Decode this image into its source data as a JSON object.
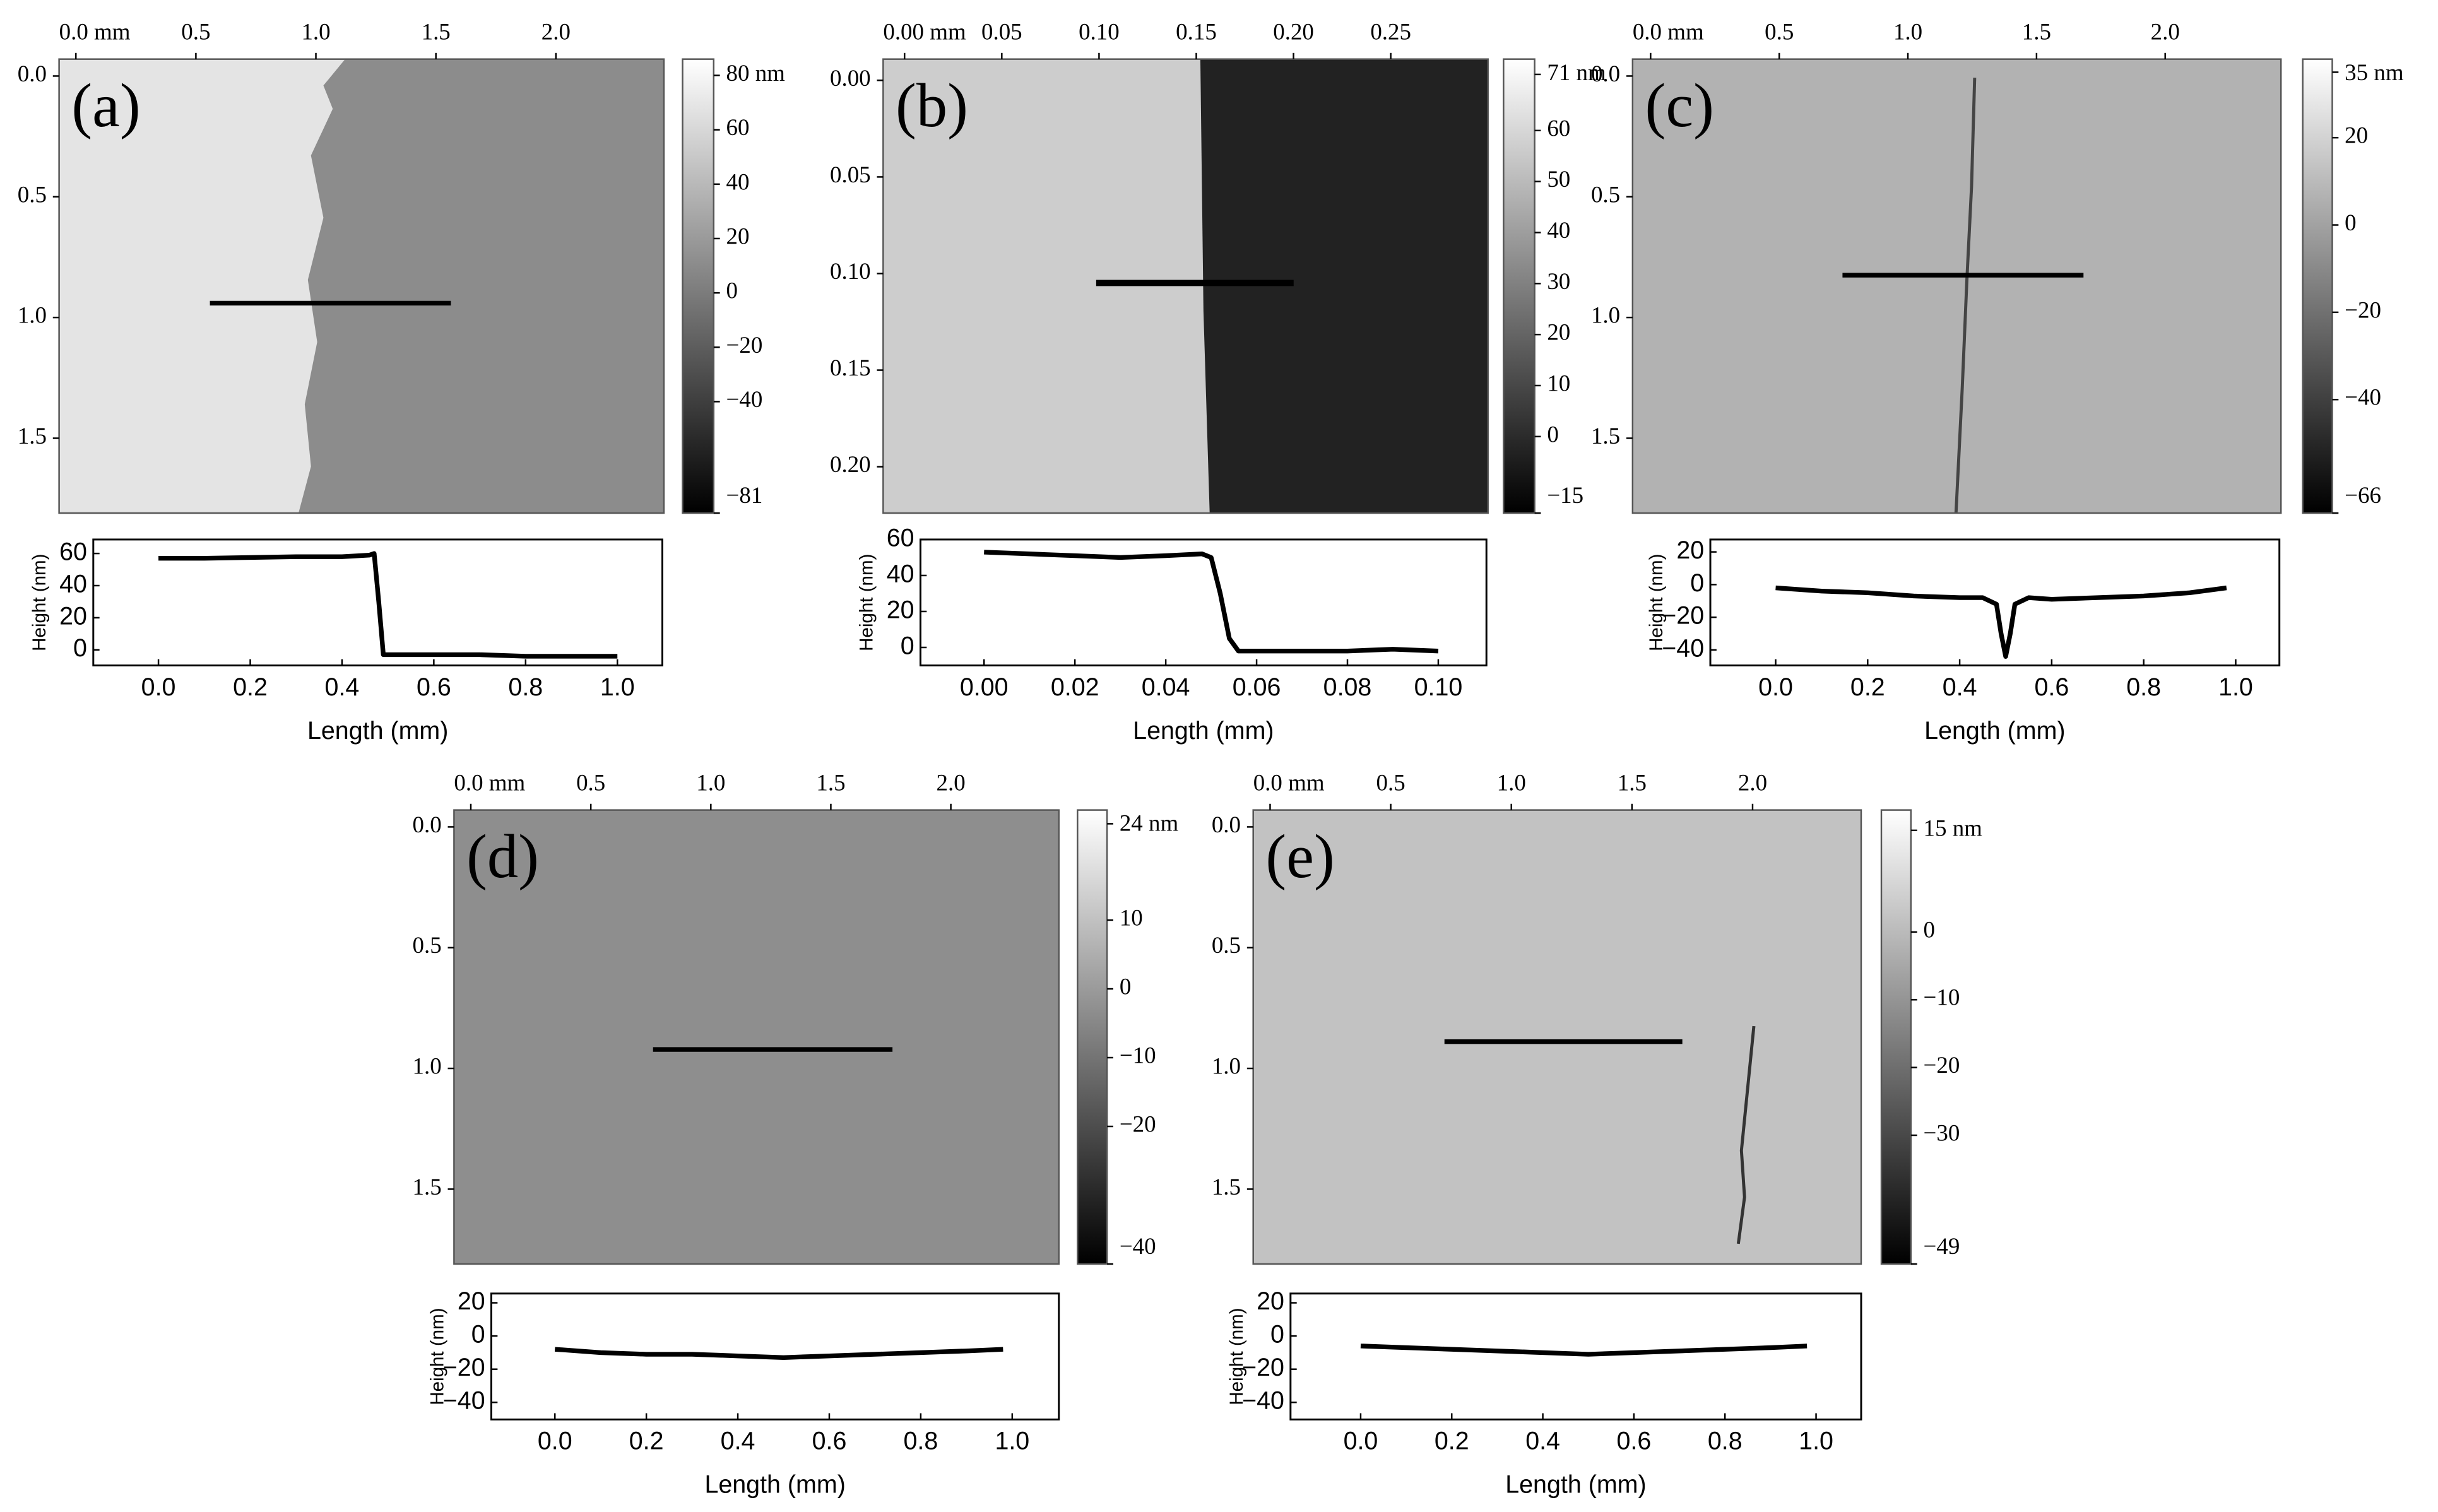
{
  "chart_data": [
    {
      "type": "image",
      "label": "(a)",
      "xlim": [
        -0.07,
        2.45
      ],
      "xticks": [
        {
          "value": 0,
          "label": "0.0 mm"
        },
        0.5,
        {
          "value": 1,
          "label": "1.0"
        },
        1.5,
        {
          "value": 2,
          "label": "2.0"
        }
      ],
      "ylim": [
        -0.07,
        1.81
      ],
      "yticks": [
        {
          "value": 0,
          "label": "0.0"
        },
        0.5,
        {
          "value": 1,
          "label": "1.0"
        },
        1.5
      ],
      "clim": [
        -81,
        86
      ],
      "cticks": [
        {
          "value": 80,
          "label": "80 nm"
        },
        60,
        40,
        20,
        0,
        {
          "value": -20,
          "label": "−20"
        },
        {
          "value": -40,
          "label": "−40"
        },
        {
          "value": -81,
          "label": "−81"
        }
      ]
    },
    {
      "type": "line",
      "x_label": "Length (mm)",
      "y_label": "Height (nm)",
      "color": "#000000",
      "x": [
        0,
        0.1,
        0.2,
        0.3,
        0.4,
        0.46,
        0.47,
        0.48,
        0.49,
        0.5,
        0.6,
        0.7,
        0.8,
        0.9,
        1.0
      ],
      "values": [
        57,
        57,
        57.5,
        58,
        58,
        59,
        60,
        30,
        -3,
        -3,
        -3,
        -3,
        -4,
        -4,
        -4
      ],
      "xlim": [
        -0.142,
        1.098
      ],
      "xticks": [
        {
          "value": 0,
          "label": "0.0"
        },
        0.2,
        0.4,
        0.6,
        0.8,
        {
          "value": 1,
          "label": "1.0"
        }
      ],
      "ylim": [
        -9.7,
        68.7
      ],
      "yticks": [
        60,
        40,
        20,
        0
      ]
    },
    {
      "type": "image",
      "label": "(b)",
      "xlim": [
        -0.011,
        0.3
      ],
      "xticks": [
        {
          "value": 0,
          "label": "0.00 mm"
        },
        0.05,
        {
          "value": 0.1,
          "label": "0.10"
        },
        0.15,
        {
          "value": 0.2,
          "label": "0.20"
        },
        0.25
      ],
      "ylim": [
        -0.011,
        0.224
      ],
      "yticks": [
        {
          "value": 0,
          "label": "0.00"
        },
        0.05,
        {
          "value": 0.1,
          "label": "0.10"
        },
        0.15,
        {
          "value": 0.2,
          "label": "0.20"
        }
      ],
      "clim": [
        -15,
        74
      ],
      "cticks": [
        {
          "value": 71,
          "label": "71 nm"
        },
        60,
        50,
        40,
        30,
        20,
        10,
        0,
        {
          "value": -15,
          "label": "−15"
        }
      ]
    },
    {
      "type": "line",
      "x_label": "Length (mm)",
      "y_label": "Height (nm)",
      "color": "#000000",
      "x": [
        0,
        0.01,
        0.02,
        0.03,
        0.04,
        0.048,
        0.05,
        0.052,
        0.054,
        0.056,
        0.06,
        0.07,
        0.08,
        0.09,
        0.1
      ],
      "values": [
        53,
        52,
        51,
        50,
        51,
        52,
        50,
        30,
        5,
        -2,
        -2,
        -2,
        -2,
        -1,
        -2
      ],
      "xlim": [
        -0.014,
        0.1106
      ],
      "xticks": [
        {
          "value": 0,
          "label": "0.00"
        },
        0.02,
        0.04,
        0.06,
        0.08,
        {
          "value": 0.1,
          "label": "0.10"
        }
      ],
      "ylim": [
        -10,
        60
      ],
      "yticks": [
        60,
        40,
        20,
        0
      ]
    },
    {
      "type": "image",
      "label": "(c)",
      "xlim": [
        -0.07,
        2.45
      ],
      "xticks": [
        {
          "value": 0,
          "label": "0.0 mm"
        },
        0.5,
        {
          "value": 1,
          "label": "1.0"
        },
        1.5,
        {
          "value": 2,
          "label": "2.0"
        }
      ],
      "ylim": [
        -0.07,
        1.81
      ],
      "yticks": [
        {
          "value": 0,
          "label": "0.0"
        },
        0.5,
        {
          "value": 1,
          "label": "1.0"
        },
        1.5
      ],
      "clim": [
        -66,
        38
      ],
      "cticks": [
        {
          "value": 35,
          "label": "35 nm"
        },
        20,
        0,
        {
          "value": -20,
          "label": "−20"
        },
        {
          "value": -40,
          "label": "−40"
        },
        {
          "value": -66,
          "label": "−66"
        }
      ]
    },
    {
      "type": "line",
      "x_label": "Length (mm)",
      "y_label": "Height (nm)",
      "color": "#000000",
      "x": [
        0,
        0.1,
        0.2,
        0.3,
        0.4,
        0.45,
        0.48,
        0.49,
        0.5,
        0.51,
        0.52,
        0.55,
        0.6,
        0.7,
        0.8,
        0.9,
        0.98
      ],
      "values": [
        -2,
        -4,
        -5,
        -7,
        -8,
        -8,
        -12,
        -30,
        -44,
        -30,
        -12,
        -8,
        -9,
        -8,
        -7,
        -5,
        -2
      ],
      "xlim": [
        -0.142,
        1.095
      ],
      "xticks": [
        {
          "value": 0,
          "label": "0.0"
        },
        0.2,
        0.4,
        0.6,
        0.8,
        {
          "value": 1,
          "label": "1.0"
        }
      ],
      "ylim": [
        -49.5,
        27.6
      ],
      "yticks": [
        20,
        0,
        {
          "value": -20,
          "label": "−20"
        },
        {
          "value": -40,
          "label": "−40"
        }
      ]
    },
    {
      "type": "image",
      "label": "(d)",
      "xlim": [
        -0.07,
        2.45
      ],
      "xticks": [
        {
          "value": 0,
          "label": "0.0 mm"
        },
        0.5,
        {
          "value": 1,
          "label": "1.0"
        },
        1.5,
        {
          "value": 2,
          "label": "2.0"
        }
      ],
      "ylim": [
        -0.07,
        1.81
      ],
      "yticks": [
        {
          "value": 0,
          "label": "0.0"
        },
        0.5,
        {
          "value": 1,
          "label": "1.0"
        },
        1.5
      ],
      "clim": [
        -40,
        26
      ],
      "cticks": [
        {
          "value": 24,
          "label": "24 nm"
        },
        10,
        0,
        {
          "value": -10,
          "label": "−10"
        },
        {
          "value": -20,
          "label": "−20"
        },
        {
          "value": -40,
          "label": "−40"
        }
      ]
    },
    {
      "type": "line",
      "x_label": "Length (mm)",
      "y_label": "Height (nm)",
      "color": "#000000",
      "x": [
        0,
        0.1,
        0.2,
        0.3,
        0.4,
        0.5,
        0.6,
        0.7,
        0.8,
        0.9,
        0.98
      ],
      "values": [
        -8,
        -10,
        -11,
        -11,
        -12,
        -13,
        -12,
        -11,
        -10,
        -9,
        -8
      ],
      "xlim": [
        -0.139,
        1.102
      ],
      "xticks": [
        {
          "value": 0,
          "label": "0.0"
        },
        0.2,
        0.4,
        0.6,
        0.8,
        {
          "value": 1,
          "label": "1.0"
        }
      ],
      "ylim": [
        -50.3,
        25.6
      ],
      "yticks": [
        20,
        0,
        {
          "value": -20,
          "label": "−20"
        },
        {
          "value": -40,
          "label": "−40"
        }
      ]
    },
    {
      "type": "image",
      "label": "(e)",
      "xlim": [
        -0.07,
        2.45
      ],
      "xticks": [
        {
          "value": 0,
          "label": "0.0 mm"
        },
        0.5,
        {
          "value": 1,
          "label": "1.0"
        },
        1.5,
        {
          "value": 2,
          "label": "2.0"
        }
      ],
      "ylim": [
        -0.07,
        1.81
      ],
      "yticks": [
        {
          "value": 0,
          "label": "0.0"
        },
        0.5,
        {
          "value": 1,
          "label": "1.0"
        },
        1.5
      ],
      "clim": [
        -49,
        18
      ],
      "cticks": [
        {
          "value": 15,
          "label": "15 nm"
        },
        0,
        {
          "value": -10,
          "label": "−10"
        },
        {
          "value": -20,
          "label": "−20"
        },
        {
          "value": -30,
          "label": "−30"
        },
        {
          "value": -49,
          "label": "−49"
        }
      ]
    },
    {
      "type": "line",
      "x_label": "Length (mm)",
      "y_label": "Height (nm)",
      "color": "#000000",
      "x": [
        0,
        0.1,
        0.2,
        0.3,
        0.4,
        0.5,
        0.6,
        0.7,
        0.8,
        0.9,
        0.98
      ],
      "values": [
        -6,
        -7,
        -8,
        -9,
        -10,
        -11,
        -10,
        -9,
        -8,
        -7,
        -6
      ],
      "xlim": [
        -0.154,
        1.099
      ],
      "xticks": [
        {
          "value": 0,
          "label": "0.0"
        },
        0.2,
        0.4,
        0.6,
        0.8,
        {
          "value": 1,
          "label": "1.0"
        }
      ],
      "ylim": [
        -50.3,
        25.6
      ],
      "yticks": [
        20,
        0,
        {
          "value": -20,
          "label": "−20"
        },
        {
          "value": -40,
          "label": "−40"
        }
      ]
    }
  ]
}
